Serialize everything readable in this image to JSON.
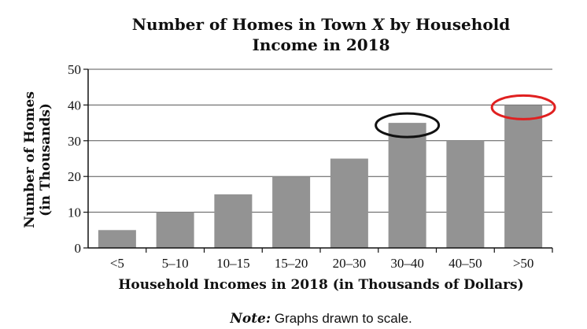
{
  "chart_data": {
    "type": "bar",
    "title_line1_a": "Number of Homes in Town ",
    "title_line1_var": "X",
    "title_line1_b": " by Household",
    "title_line2": "Income in 2018",
    "ylabel_line1": "Number of Homes",
    "ylabel_line2": "(in Thousands)",
    "xlabel": "Household Incomes in 2018 (in Thousands of Dollars)",
    "categories": [
      "<5",
      "5–10",
      "10–15",
      "15–20",
      "20–30",
      "30–40",
      "40–50",
      ">50"
    ],
    "values": [
      5,
      10,
      15,
      20,
      25,
      35,
      30,
      40
    ],
    "ylim": [
      0,
      50
    ],
    "yticks": [
      "0",
      "10",
      "20",
      "30",
      "40",
      "50"
    ],
    "grid": true,
    "bar_color": "#939393",
    "annotations": [
      {
        "category": "30–40",
        "shape": "ellipse",
        "color": "#111111"
      },
      {
        "category": ">50",
        "shape": "ellipse",
        "color": "#e02020"
      }
    ]
  },
  "note": {
    "label": "Note:",
    "text": " Graphs drawn to scale."
  }
}
